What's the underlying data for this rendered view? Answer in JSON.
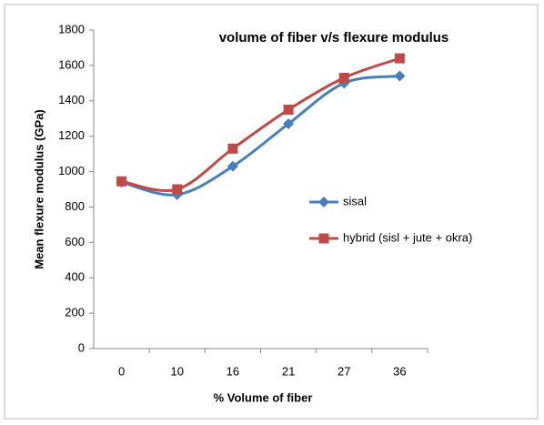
{
  "chart_data": {
    "type": "line",
    "title": "volume of fiber v/s flexure modulus",
    "x_label": "% Volume of fiber",
    "y_label": "Mean flexure modulus (GPa)",
    "categories": [
      "0",
      "10",
      "16",
      "21",
      "27",
      "36"
    ],
    "series": [
      {
        "name": "sisal",
        "color": "#4a7ebb",
        "marker": "diamond",
        "values": [
          940,
          870,
          1030,
          1270,
          1500,
          1540
        ]
      },
      {
        "name": "hybrid (sisl + jute + okra)",
        "color": "#be4b48",
        "marker": "square",
        "values": [
          945,
          900,
          1130,
          1350,
          1530,
          1640
        ]
      }
    ],
    "ylim": [
      0,
      1800
    ],
    "yticks": [
      0,
      200,
      400,
      600,
      800,
      1000,
      1200,
      1400,
      1600,
      1800
    ],
    "grid": false
  }
}
